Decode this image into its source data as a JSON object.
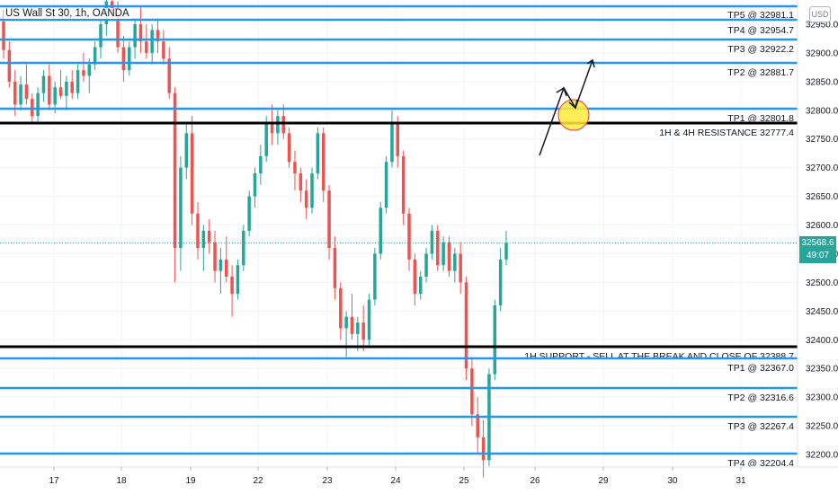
{
  "header": {
    "symbol_title": "US Wall St 30, 1h, OANDA",
    "currency": "USD"
  },
  "price_tag": {
    "price": "32568.6",
    "countdown": "49:07"
  },
  "colors": {
    "up": "#26a69a",
    "down": "#ef5350",
    "level_line": "#2196f3",
    "key_line": "#000000",
    "grid": "#f0f3fa",
    "highlight": "#ffeb3b",
    "last_price": "#26a69a"
  },
  "chart_data": {
    "type": "candlestick",
    "title": "US Wall St 30, 1h, OANDA",
    "ylim": [
      32170,
      32998
    ],
    "y_ticks": [
      32950,
      32900,
      32850,
      32800,
      32750,
      32700,
      32650,
      32600,
      32550,
      32500,
      32450,
      32400,
      32350,
      32300,
      32250,
      32200
    ],
    "x_tick_labels": [
      "17",
      "18",
      "19",
      "22",
      "23",
      "24",
      "25",
      "26",
      "29",
      "30",
      "31"
    ],
    "last_price": 32568.6,
    "levels": [
      {
        "label": "TP5 @ 32981.1",
        "kind": "tp"
      },
      {
        "label": "TP4 @ 32954.7",
        "kind": "tp"
      },
      {
        "label": "TP3 @ 32922.2",
        "kind": "tp"
      },
      {
        "label": "TP2 @ 32881.7",
        "kind": "tp"
      },
      {
        "label": "TP1 @ 32801.8",
        "kind": "tp"
      },
      {
        "label": "1H & 4H RESISTANCE 32777.4",
        "kind": "key"
      },
      {
        "label": "1H SUPPORT - SELL AT THE BREAK AND CLOSE OF 32388.7",
        "kind": "key"
      },
      {
        "label": "TP1 @ 32367.0",
        "kind": "tp"
      },
      {
        "label": "TP2 @ 32316.6",
        "kind": "tp"
      },
      {
        "label": "TP3 @ 32267.4",
        "kind": "tp"
      },
      {
        "label": "TP4 @ 32204.4",
        "kind": "tp"
      }
    ],
    "annotations": [
      "bullish-path-arrows",
      "highlight-circle"
    ],
    "ohlc": [
      [
        32955,
        32975,
        32890,
        32905
      ],
      [
        32905,
        32920,
        32840,
        32850
      ],
      [
        32850,
        32870,
        32790,
        32810
      ],
      [
        32810,
        32860,
        32800,
        32845
      ],
      [
        32845,
        32880,
        32810,
        32820
      ],
      [
        32820,
        32830,
        32780,
        32790
      ],
      [
        32790,
        32840,
        32780,
        32830
      ],
      [
        32830,
        32870,
        32815,
        32860
      ],
      [
        32860,
        32880,
        32800,
        32810
      ],
      [
        32810,
        32850,
        32795,
        32840
      ],
      [
        32840,
        32870,
        32820,
        32825
      ],
      [
        32825,
        32860,
        32800,
        32850
      ],
      [
        32850,
        32870,
        32820,
        32830
      ],
      [
        32830,
        32880,
        32820,
        32870
      ],
      [
        32870,
        32900,
        32850,
        32860
      ],
      [
        32860,
        32890,
        32830,
        32880
      ],
      [
        32880,
        32920,
        32870,
        32910
      ],
      [
        32910,
        32960,
        32890,
        32950
      ],
      [
        32950,
        33000,
        32930,
        32990
      ],
      [
        32990,
        33020,
        32960,
        32970
      ],
      [
        32970,
        32990,
        32900,
        32910
      ],
      [
        32910,
        32930,
        32850,
        32870
      ],
      [
        32870,
        32920,
        32860,
        32910
      ],
      [
        32910,
        32960,
        32890,
        32950
      ],
      [
        32950,
        32980,
        32900,
        32920
      ],
      [
        32920,
        32950,
        32890,
        32900
      ],
      [
        32900,
        32950,
        32880,
        32940
      ],
      [
        32940,
        32960,
        32900,
        32920
      ],
      [
        32920,
        32940,
        32880,
        32890
      ],
      [
        32890,
        32910,
        32820,
        32830
      ],
      [
        32830,
        32840,
        32500,
        32560
      ],
      [
        32560,
        32720,
        32520,
        32700
      ],
      [
        32700,
        32780,
        32680,
        32760
      ],
      [
        32760,
        32790,
        32600,
        32620
      ],
      [
        32620,
        32640,
        32540,
        32560
      ],
      [
        32560,
        32600,
        32520,
        32590
      ],
      [
        32590,
        32610,
        32550,
        32570
      ],
      [
        32570,
        32590,
        32500,
        32520
      ],
      [
        32520,
        32560,
        32480,
        32540
      ],
      [
        32540,
        32580,
        32500,
        32510
      ],
      [
        32510,
        32530,
        32440,
        32480
      ],
      [
        32480,
        32540,
        32470,
        32530
      ],
      [
        32530,
        32600,
        32520,
        32590
      ],
      [
        32590,
        32660,
        32580,
        32650
      ],
      [
        32650,
        32700,
        32630,
        32690
      ],
      [
        32690,
        32740,
        32670,
        32720
      ],
      [
        32720,
        32790,
        32710,
        32780
      ],
      [
        32780,
        32810,
        32740,
        32760
      ],
      [
        32760,
        32800,
        32740,
        32790
      ],
      [
        32790,
        32810,
        32750,
        32760
      ],
      [
        32760,
        32770,
        32700,
        32710
      ],
      [
        32710,
        32730,
        32660,
        32690
      ],
      [
        32690,
        32700,
        32640,
        32660
      ],
      [
        32660,
        32680,
        32610,
        32630
      ],
      [
        32630,
        32700,
        32620,
        32690
      ],
      [
        32690,
        32770,
        32680,
        32760
      ],
      [
        32760,
        32770,
        32640,
        32660
      ],
      [
        32660,
        32670,
        32540,
        32560
      ],
      [
        32560,
        32580,
        32470,
        32490
      ],
      [
        32490,
        32500,
        32400,
        32420
      ],
      [
        32420,
        32450,
        32370,
        32440
      ],
      [
        32440,
        32480,
        32400,
        32410
      ],
      [
        32410,
        32440,
        32380,
        32430
      ],
      [
        32430,
        32460,
        32380,
        32400
      ],
      [
        32400,
        32480,
        32390,
        32470
      ],
      [
        32470,
        32560,
        32460,
        32550
      ],
      [
        32550,
        32640,
        32540,
        32630
      ],
      [
        32630,
        32720,
        32620,
        32710
      ],
      [
        32710,
        32800,
        32700,
        32780
      ],
      [
        32780,
        32790,
        32700,
        32720
      ],
      [
        32720,
        32730,
        32600,
        32620
      ],
      [
        32620,
        32630,
        32520,
        32540
      ],
      [
        32540,
        32550,
        32460,
        32480
      ],
      [
        32480,
        32520,
        32470,
        32510
      ],
      [
        32510,
        32560,
        32500,
        32550
      ],
      [
        32550,
        32600,
        32540,
        32590
      ],
      [
        32590,
        32600,
        32520,
        32530
      ],
      [
        32530,
        32580,
        32520,
        32570
      ],
      [
        32570,
        32580,
        32510,
        32520
      ],
      [
        32520,
        32560,
        32500,
        32550
      ],
      [
        32550,
        32570,
        32480,
        32500
      ],
      [
        32500,
        32510,
        32330,
        32350
      ],
      [
        32350,
        32370,
        32250,
        32270
      ],
      [
        32270,
        32300,
        32200,
        32230
      ],
      [
        32230,
        32260,
        32160,
        32190
      ],
      [
        32190,
        32350,
        32180,
        32340
      ],
      [
        32340,
        32470,
        32330,
        32460
      ],
      [
        32460,
        32560,
        32450,
        32540
      ],
      [
        32540,
        32590,
        32530,
        32568.6
      ]
    ]
  }
}
